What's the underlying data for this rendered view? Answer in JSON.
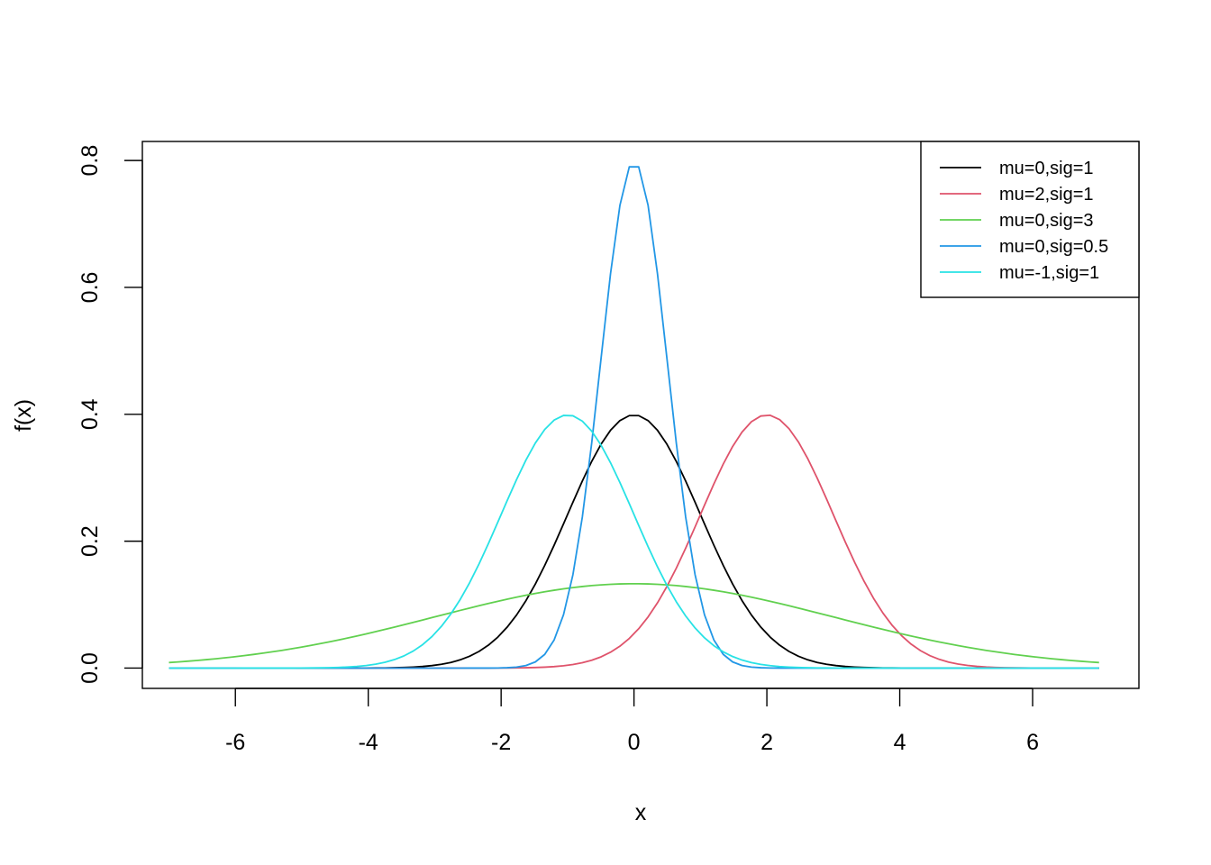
{
  "chart_data": {
    "type": "line",
    "title": "",
    "xlabel": "x",
    "ylabel": "f(x)",
    "xlim": [
      -7.4,
      7.6
    ],
    "ylim": [
      -0.032,
      0.83
    ],
    "x_range": [
      -7,
      7
    ],
    "x_ticks": [
      -6,
      -4,
      -2,
      0,
      2,
      4,
      6
    ],
    "y_ticks": [
      0.0,
      0.2,
      0.4,
      0.6,
      0.8
    ],
    "x_tick_labels": [
      "-6",
      "-4",
      "-2",
      "0",
      "2",
      "4",
      "6"
    ],
    "y_tick_labels": [
      "0.0",
      "0.2",
      "0.4",
      "0.6",
      "0.8"
    ],
    "grid": false,
    "legend_position": "top-right",
    "series": [
      {
        "name": "mu=0,sig=1",
        "mu": 0,
        "sigma": 1,
        "color": "#000000"
      },
      {
        "name": "mu=2,sig=1",
        "mu": 2,
        "sigma": 1,
        "color": "#DF536B"
      },
      {
        "name": "mu=0,sig=3",
        "mu": 0,
        "sigma": 3,
        "color": "#61D04F"
      },
      {
        "name": "mu=0,sig=0.5",
        "mu": 0,
        "sigma": 0.5,
        "color": "#2297E6"
      },
      {
        "name": "mu=-1,sig=1",
        "mu": -1,
        "sigma": 1,
        "color": "#28E2E5"
      }
    ]
  }
}
